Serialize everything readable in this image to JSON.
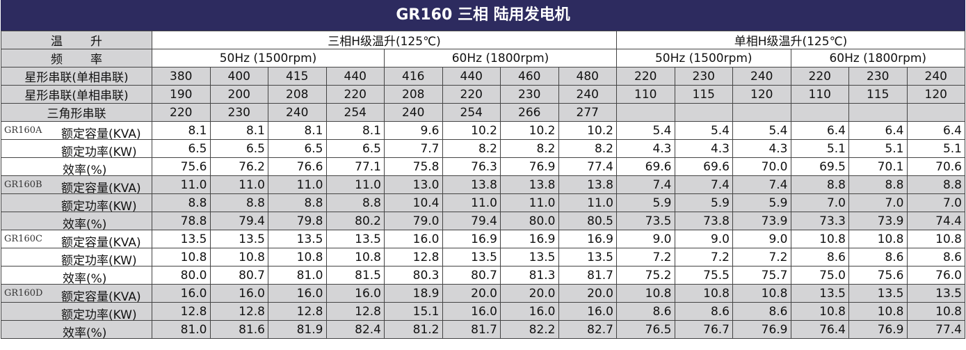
{
  "title": "GR160 三相 陆用发电机",
  "header": {
    "temp_rise_label": "温升",
    "three_phase": "三相H级温升(125℃)",
    "single_phase": "单相H级温升(125℃)",
    "freq_label": "频率",
    "freqs": [
      "50Hz (1500rpm)",
      "60Hz (1800rpm)",
      "50Hz (1500rpm)",
      "60Hz (1800rpm)"
    ]
  },
  "voltage_rows": [
    {
      "label": "星形串联(单相串联)",
      "values": [
        "380",
        "400",
        "415",
        "440",
        "416",
        "440",
        "460",
        "480",
        "220",
        "230",
        "240",
        "220",
        "230",
        "240"
      ]
    },
    {
      "label": "星形串联(单相串联)",
      "values": [
        "190",
        "200",
        "208",
        "220",
        "208",
        "220",
        "230",
        "240",
        "110",
        "115",
        "120",
        "110",
        "115",
        "120"
      ]
    },
    {
      "label": "三角形串联",
      "values": [
        "220",
        "230",
        "240",
        "254",
        "240",
        "254",
        "266",
        "277"
      ]
    }
  ],
  "models": [
    {
      "name": "GR160A",
      "rows": [
        {
          "label": "额定容量(KVA)",
          "values": [
            "8.1",
            "8.1",
            "8.1",
            "8.1",
            "9.6",
            "10.2",
            "10.2",
            "10.2",
            "5.4",
            "5.4",
            "5.4",
            "6.4",
            "6.4",
            "6.4"
          ]
        },
        {
          "label": "额定功率(KW)",
          "values": [
            "6.5",
            "6.5",
            "6.5",
            "6.5",
            "7.7",
            "8.2",
            "8.2",
            "8.2",
            "4.3",
            "4.3",
            "4.3",
            "5.1",
            "5.1",
            "5.1"
          ]
        },
        {
          "label": "效率(%)",
          "values": [
            "75.6",
            "76.2",
            "76.6",
            "77.1",
            "75.8",
            "76.3",
            "76.9",
            "77.4",
            "69.6",
            "69.6",
            "70.0",
            "69.5",
            "70.1",
            "70.6"
          ]
        }
      ]
    },
    {
      "name": "GR160B",
      "rows": [
        {
          "label": "额定容量(KVA)",
          "values": [
            "11.0",
            "11.0",
            "11.0",
            "11.0",
            "13.0",
            "13.8",
            "13.8",
            "13.8",
            "7.4",
            "7.4",
            "7.4",
            "8.8",
            "8.8",
            "8.8"
          ]
        },
        {
          "label": "额定功率(KW)",
          "values": [
            "8.8",
            "8.8",
            "8.8",
            "8.8",
            "10.4",
            "11.0",
            "11.0",
            "11.0",
            "5.9",
            "5.9",
            "5.9",
            "7.0",
            "7.0",
            "7.0"
          ]
        },
        {
          "label": "效率(%)",
          "values": [
            "78.8",
            "79.4",
            "79.8",
            "80.2",
            "79.0",
            "79.4",
            "80.0",
            "80.5",
            "73.5",
            "73.8",
            "73.9",
            "73.3",
            "73.9",
            "74.4"
          ]
        }
      ]
    },
    {
      "name": "GR160C",
      "rows": [
        {
          "label": "额定容量(KVA)",
          "values": [
            "13.5",
            "13.5",
            "13.5",
            "13.5",
            "16.0",
            "16.9",
            "16.9",
            "16.9",
            "9.0",
            "9.0",
            "9.0",
            "10.8",
            "10.8",
            "10.8"
          ]
        },
        {
          "label": "额定功率(KW)",
          "values": [
            "10.8",
            "10.8",
            "10.8",
            "10.8",
            "12.8",
            "13.5",
            "13.5",
            "13.5",
            "7.2",
            "7.2",
            "7.2",
            "8.6",
            "8.6",
            "8.6"
          ]
        },
        {
          "label": "效率(%)",
          "values": [
            "80.0",
            "80.7",
            "81.0",
            "81.5",
            "80.3",
            "80.7",
            "81.3",
            "81.7",
            "75.2",
            "75.5",
            "75.7",
            "75.0",
            "75.6",
            "76.0"
          ]
        }
      ]
    },
    {
      "name": "GR160D",
      "rows": [
        {
          "label": "额定容量(KVA)",
          "values": [
            "16.0",
            "16.0",
            "16.0",
            "16.0",
            "18.9",
            "20.0",
            "20.0",
            "20.0",
            "10.8",
            "10.8",
            "10.8",
            "13.5",
            "13.5",
            "13.5"
          ]
        },
        {
          "label": "额定功率(KW)",
          "values": [
            "12.8",
            "12.8",
            "12.8",
            "12.8",
            "15.1",
            "16.0",
            "16.0",
            "16.0",
            "8.6",
            "8.6",
            "8.6",
            "10.8",
            "10.8",
            "10.8"
          ]
        },
        {
          "label": "效率(%)",
          "values": [
            "81.0",
            "81.6",
            "81.9",
            "82.4",
            "81.2",
            "81.7",
            "82.2",
            "82.7",
            "76.5",
            "76.7",
            "76.9",
            "76.4",
            "76.9",
            "77.4"
          ]
        }
      ]
    }
  ]
}
